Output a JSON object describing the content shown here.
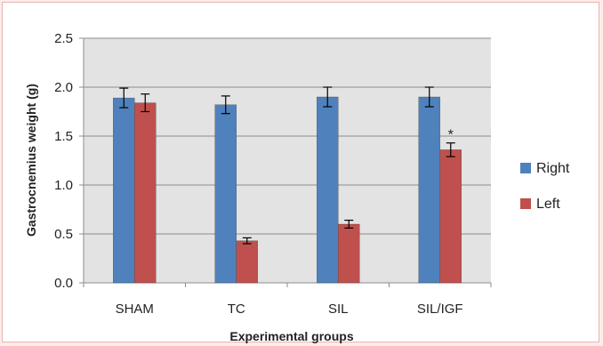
{
  "chart_data": {
    "type": "bar",
    "title": "",
    "xlabel": "Experimental groups",
    "ylabel": "Gastrocnemius weight (g)",
    "ylim": [
      0,
      2.5
    ],
    "yticks": [
      "0.0",
      "0.5",
      "1.0",
      "1.5",
      "2.0",
      "2.5"
    ],
    "grid": true,
    "legend_position": "right",
    "categories": [
      "SHAM",
      "TC",
      "SIL",
      "SIL/IGF"
    ],
    "series": [
      {
        "name": "Right",
        "color": "#4f81bd",
        "values": [
          1.89,
          1.82,
          1.9,
          1.9
        ],
        "errors": [
          0.1,
          0.09,
          0.1,
          0.1
        ]
      },
      {
        "name": "Left",
        "color": "#c0504d",
        "values": [
          1.84,
          0.43,
          0.6,
          1.36
        ],
        "errors": [
          0.09,
          0.03,
          0.04,
          0.07
        ]
      }
    ],
    "annotations": [
      {
        "text": "*",
        "category": "SIL/IGF",
        "series": "Left"
      }
    ]
  },
  "style": {
    "plot_background": "#e3e3e3",
    "gridline_color": "#8c8c8c",
    "page_background": "#fdecea",
    "frame_border": "#e8b4ae"
  }
}
